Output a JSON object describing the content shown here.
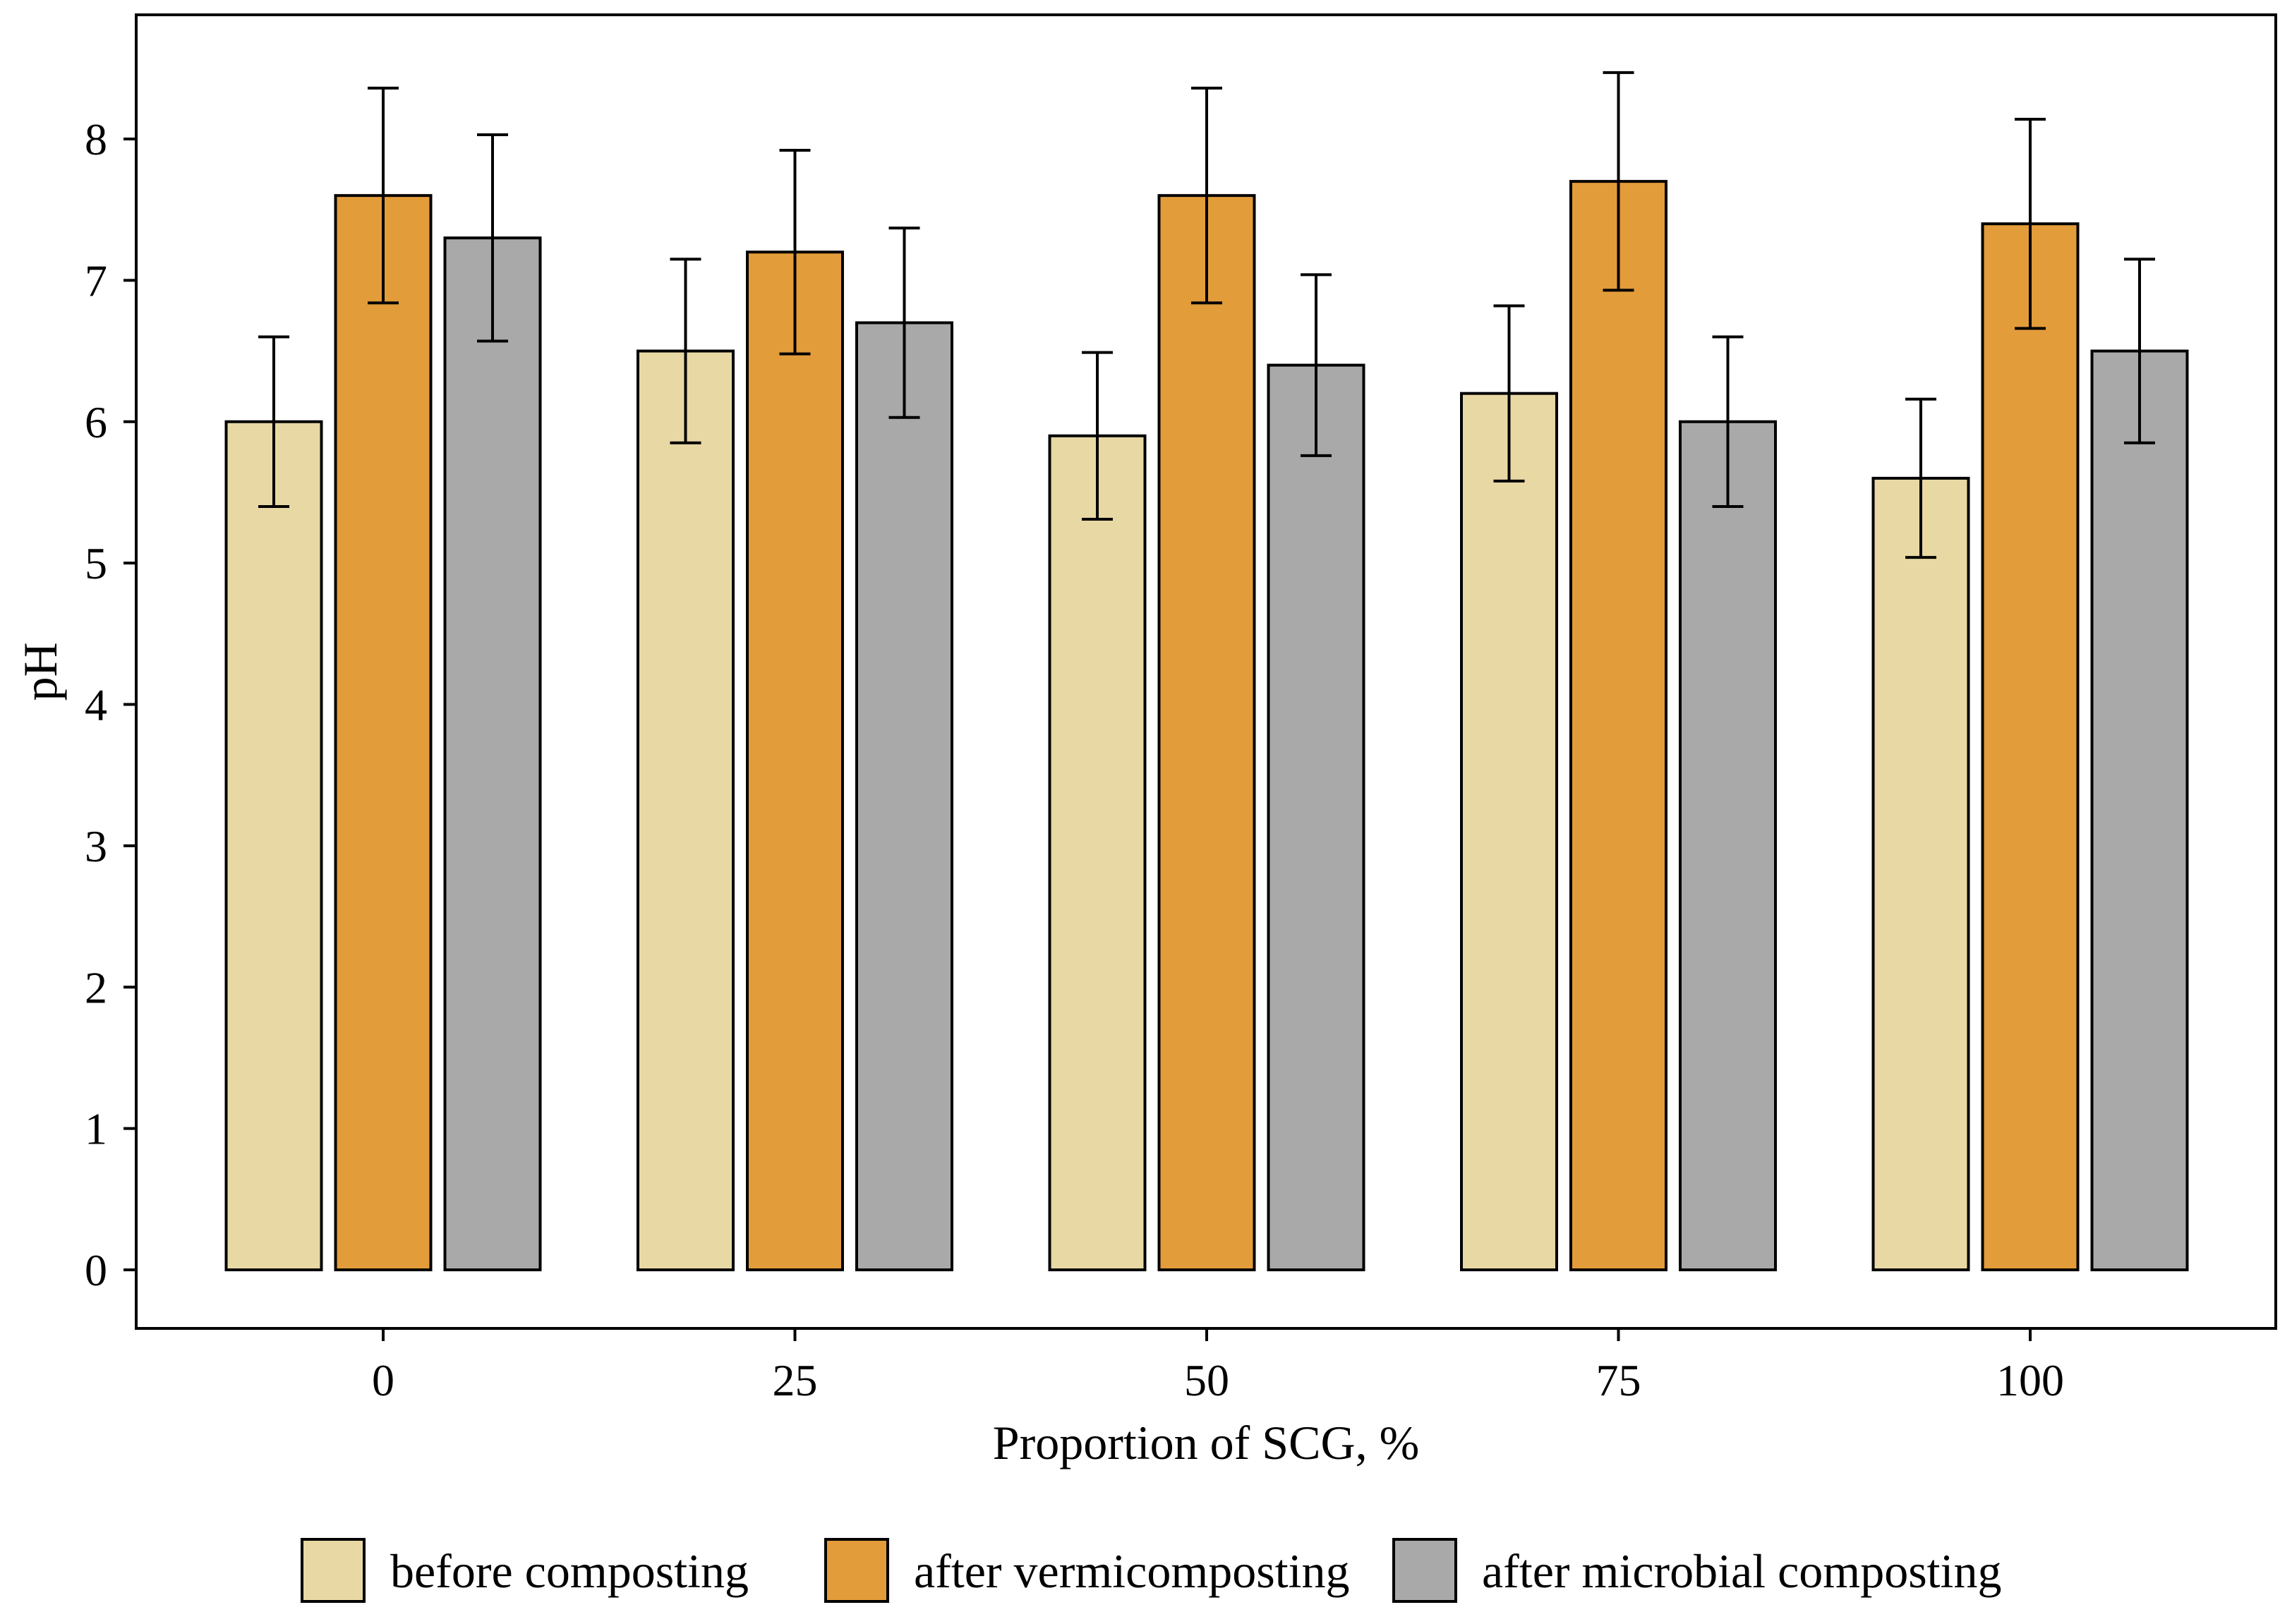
{
  "chart_data": {
    "type": "bar",
    "title": "",
    "xlabel": "Proportion of SCG, %",
    "ylabel": "pH",
    "ylim": [
      -0.42,
      8.8
    ],
    "yticks": [
      0,
      1,
      2,
      3,
      4,
      5,
      6,
      7,
      8
    ],
    "categories": [
      "0",
      "25",
      "50",
      "75",
      "100"
    ],
    "grid": false,
    "legend_position": "bottom",
    "series": [
      {
        "name": "before composting",
        "color": "#E8D8A4",
        "values": [
          6.0,
          6.5,
          5.9,
          6.2,
          5.6
        ],
        "errors": [
          0.6,
          0.65,
          0.59,
          0.62,
          0.56
        ]
      },
      {
        "name": "after vermicomposting",
        "color": "#E39C3A",
        "values": [
          7.6,
          7.2,
          7.6,
          7.7,
          7.4
        ],
        "errors": [
          0.76,
          0.72,
          0.76,
          0.77,
          0.74
        ]
      },
      {
        "name": "after microbial composting",
        "color": "#A9A9A9",
        "values": [
          7.3,
          6.7,
          6.4,
          6.0,
          6.5
        ],
        "errors": [
          0.73,
          0.67,
          0.64,
          0.6,
          0.65
        ]
      }
    ]
  }
}
